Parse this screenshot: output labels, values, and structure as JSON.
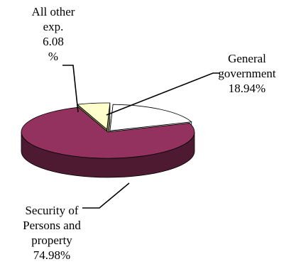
{
  "chart_data": {
    "type": "pie",
    "style": "3d-exploded",
    "slices": [
      {
        "label_lines": [
          "General",
          "government",
          "18.94%"
        ],
        "value": 18.94,
        "top_color": "#ffffff",
        "side_color": "#e6e6e6"
      },
      {
        "label_lines": [
          "Security of",
          "Persons and",
          "property",
          "74.98%"
        ],
        "value": 74.98,
        "top_color": "#93325f",
        "side_color": "#4d1a32"
      },
      {
        "label_lines": [
          "All other",
          "exp.",
          "6.08",
          "%"
        ],
        "value": 6.08,
        "top_color": "#ffffcc",
        "side_color": "#7a7a52"
      }
    ],
    "legend": "none"
  }
}
